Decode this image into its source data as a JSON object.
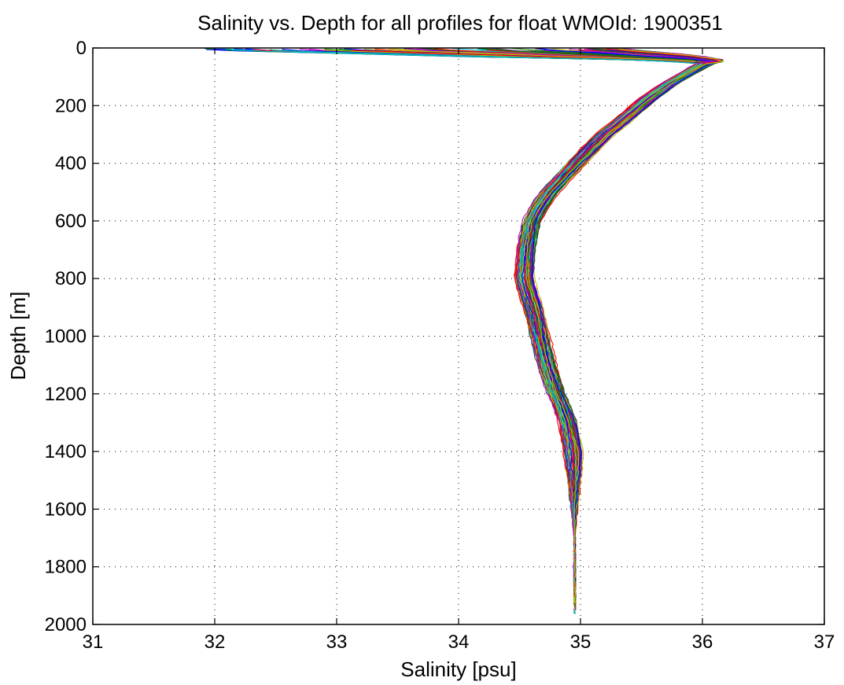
{
  "chart_data": {
    "type": "line",
    "title": "Salinity vs. Depth for all profiles for float WMOId: 1900351",
    "xlabel": "Salinity [psu]",
    "ylabel": "Depth [m]",
    "xlim": [
      31,
      37
    ],
    "ylim": [
      0,
      2000
    ],
    "y_reversed": true,
    "xticks": [
      31,
      32,
      33,
      34,
      35,
      36,
      37
    ],
    "yticks": [
      0,
      200,
      400,
      600,
      800,
      1000,
      1200,
      1400,
      1600,
      1800,
      2000
    ],
    "xtick_labels": [
      "31",
      "32",
      "33",
      "34",
      "35",
      "36",
      "37"
    ],
    "ytick_labels": [
      "0",
      "200",
      "400",
      "600",
      "800",
      "1000",
      "1200",
      "1400",
      "1600",
      "1800",
      "2000"
    ],
    "grid": true,
    "legend": "none",
    "series_colors": [
      "#0000ff",
      "#008000",
      "#ff0000",
      "#00bfbf",
      "#bf00bf",
      "#bfbf00",
      "#404040"
    ],
    "mean_profile": {
      "depth": [
        50,
        80,
        120,
        180,
        250,
        300,
        350,
        400,
        450,
        500,
        550,
        600,
        650,
        700,
        750,
        800,
        850,
        900,
        950,
        1000,
        1050,
        1100,
        1150,
        1200,
        1250,
        1300,
        1350,
        1400,
        1450,
        1500,
        1550,
        1600,
        1700,
        1800,
        1900,
        1970
      ],
      "salinity": [
        36.05,
        35.92,
        35.75,
        35.55,
        35.35,
        35.2,
        35.08,
        34.97,
        34.86,
        34.75,
        34.67,
        34.61,
        34.58,
        34.56,
        34.55,
        34.54,
        34.57,
        34.61,
        34.64,
        34.67,
        34.7,
        34.73,
        34.77,
        34.81,
        34.86,
        34.9,
        34.92,
        34.94,
        34.945,
        34.95,
        34.95,
        34.95,
        34.952,
        34.953,
        34.953,
        34.953
      ]
    },
    "surface_range": {
      "depth": [
        0,
        10,
        20,
        30,
        40,
        50
      ],
      "salinity_min": [
        31.7,
        32.1,
        33.1,
        34.0,
        35.3,
        35.9
      ],
      "salinity_max": [
        35.3,
        35.5,
        35.8,
        36.0,
        36.15,
        36.15
      ]
    }
  }
}
